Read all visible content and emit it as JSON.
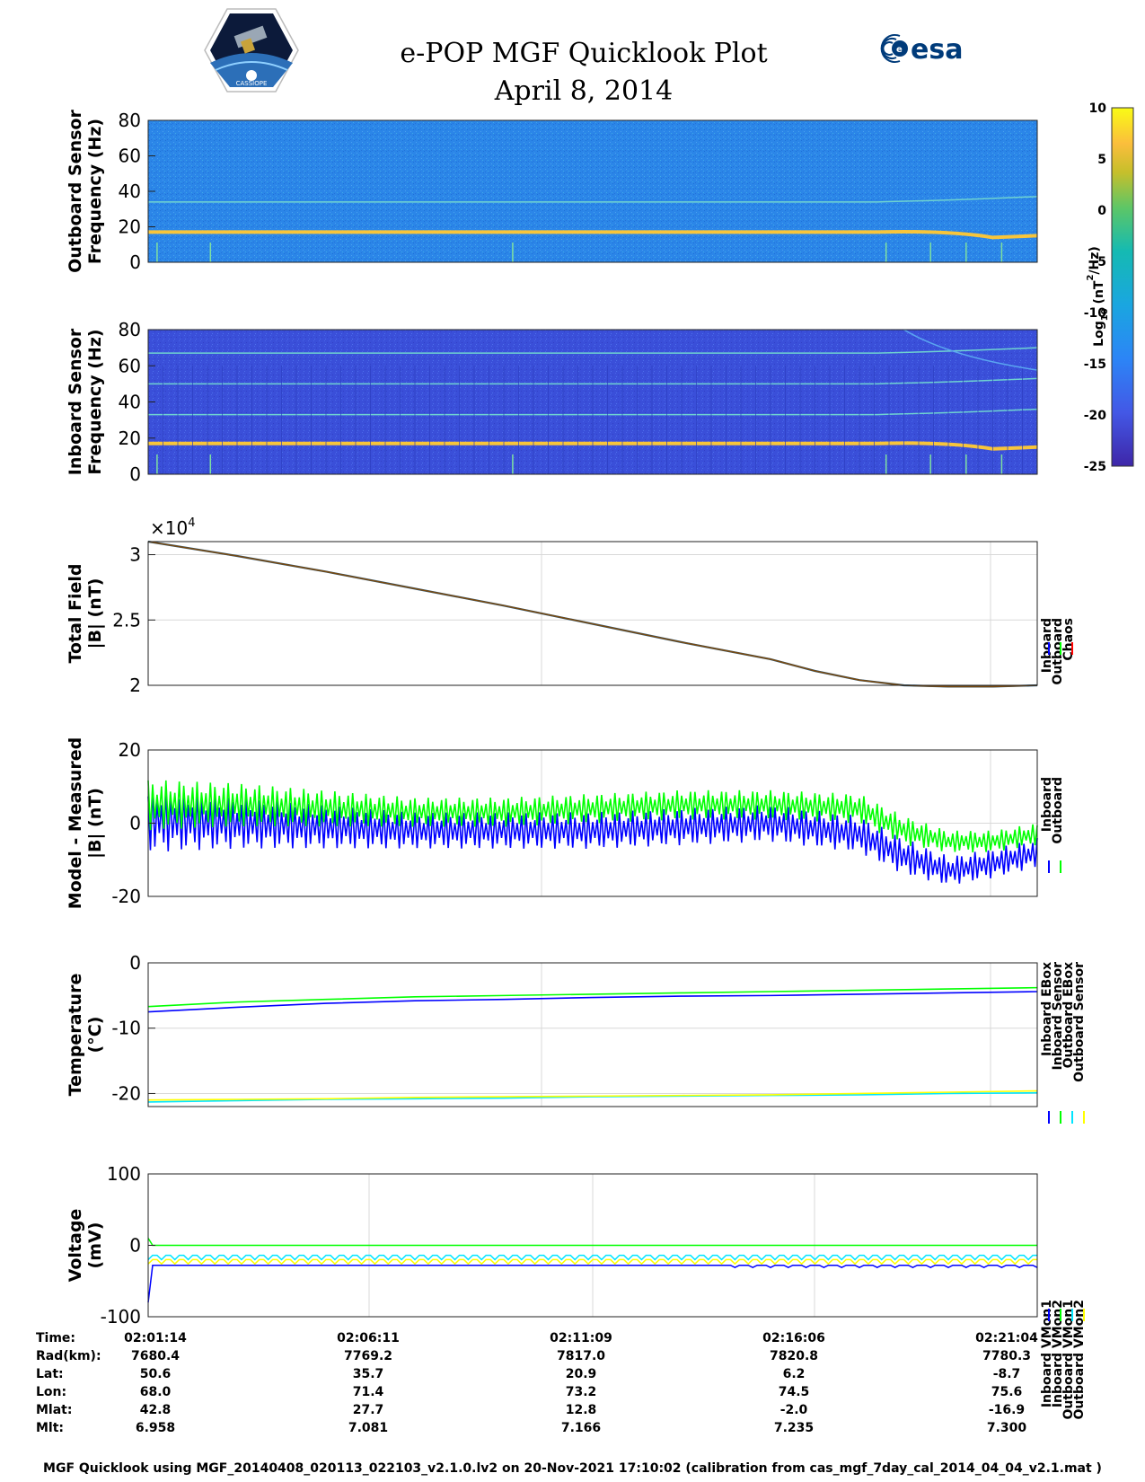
{
  "header": {
    "title": "e-POP MGF Quicklook Plot",
    "date": "April 8, 2014",
    "esa_logo_text": "esa",
    "mission_logo_text": "CASSIOPE"
  },
  "colors": {
    "inboard": "#0000ff",
    "outboard": "#00ff00",
    "chaos": "#ff0000",
    "outboard_ebox": "#00e5ff",
    "outboard_sensor": "#ffff00",
    "spectrogram_bg": "#2a7fe3",
    "spectrogram_inboard_bg": "#3944d6",
    "line_yellow": "#f7c53b"
  },
  "chart_data": [
    {
      "type": "heatmap",
      "ylabel_line1": "Outboard Sensor",
      "ylabel_line2": "Frequency (Hz)",
      "y_ticks": [
        "80",
        "60",
        "40",
        "20",
        "0"
      ],
      "ylim": [
        0,
        80
      ],
      "bright_lines_hz": [
        17,
        34
      ]
    },
    {
      "type": "heatmap",
      "ylabel_line1": "Inboard Sensor",
      "ylabel_line2": "Frequency (Hz)",
      "y_ticks": [
        "80",
        "60",
        "40",
        "20",
        "0"
      ],
      "ylim": [
        0,
        80
      ],
      "bright_lines_hz": [
        17,
        33,
        50,
        67
      ]
    },
    {
      "type": "colorbar",
      "label": "Log10 (nT^2/Hz)",
      "label_base": "Log",
      "label_sub": "10",
      "label_mid": " (nT",
      "label_sup": "2",
      "label_end": "/Hz)",
      "ticks": [
        "10",
        "5",
        "0",
        "-5",
        "-10",
        "-15",
        "-20",
        "-25"
      ],
      "range": [
        -25,
        10
      ]
    },
    {
      "type": "line",
      "ylabel_line1": "Total Field",
      "ylabel_line2": "|B| (nT)",
      "exponent_label": "×10",
      "exponent_power": "4",
      "y_ticks": [
        "3",
        "2.5",
        "2"
      ],
      "ylim": [
        2.0,
        3.1
      ],
      "legend": [
        "Inboard",
        "Outboard",
        "Chaos"
      ],
      "x_fraction": [
        0,
        0.1,
        0.2,
        0.3,
        0.4,
        0.5,
        0.6,
        0.7,
        0.75,
        0.8,
        0.85,
        0.9,
        0.95,
        1.0
      ],
      "values_e4": [
        3.1,
        2.99,
        2.87,
        2.74,
        2.61,
        2.47,
        2.33,
        2.2,
        2.11,
        2.04,
        2.0,
        1.99,
        1.99,
        2.0
      ]
    },
    {
      "type": "line",
      "ylabel_line1": "Model - Measured",
      "ylabel_line2": "|B| (nT)",
      "y_ticks": [
        "20",
        "0",
        "-20"
      ],
      "ylim": [
        -20,
        20
      ],
      "legend": [
        "Inboard",
        "Outboard"
      ],
      "x_fraction": [
        0,
        0.1,
        0.2,
        0.3,
        0.4,
        0.5,
        0.6,
        0.7,
        0.8,
        0.85,
        0.9,
        0.95,
        1.0
      ],
      "series": [
        {
          "name": "Inboard",
          "center": [
            1,
            0,
            -1,
            -2,
            -2,
            -2,
            -1,
            0,
            -3,
            -9,
            -13,
            -11,
            -8
          ],
          "amp": [
            9,
            7,
            6,
            5,
            5,
            5,
            5,
            5,
            5,
            5,
            4,
            4,
            4
          ]
        },
        {
          "name": "Outboard",
          "center": [
            5,
            5,
            4,
            3,
            3,
            4,
            5,
            5,
            4,
            -2,
            -5,
            -5,
            -3
          ],
          "amp": [
            7,
            6,
            5,
            4,
            4,
            4,
            4,
            4,
            4,
            4,
            3,
            3,
            3
          ]
        }
      ]
    },
    {
      "type": "line",
      "ylabel_line1": "Temperature",
      "ylabel_line2": "(°C)",
      "y_ticks": [
        "0",
        "-10",
        "-20"
      ],
      "ylim": [
        -22,
        0
      ],
      "legend": [
        "Inboard EBox",
        "Inboard Sensor",
        "Outboard EBox",
        "Outboard Sensor"
      ],
      "x_fraction": [
        0,
        0.1,
        0.2,
        0.3,
        0.4,
        0.5,
        0.6,
        0.7,
        0.8,
        0.9,
        1.0
      ],
      "series": [
        {
          "name": "Inboard EBox",
          "values": [
            -7.5,
            -6.8,
            -6.2,
            -5.8,
            -5.6,
            -5.3,
            -5.1,
            -5.0,
            -4.8,
            -4.6,
            -4.4
          ]
        },
        {
          "name": "Inboard Sensor",
          "values": [
            -6.7,
            -6.0,
            -5.6,
            -5.2,
            -5.0,
            -4.8,
            -4.6,
            -4.4,
            -4.2,
            -4.0,
            -3.8
          ]
        },
        {
          "name": "Outboard EBox",
          "values": [
            -21.3,
            -21.1,
            -20.9,
            -20.8,
            -20.7,
            -20.5,
            -20.4,
            -20.3,
            -20.2,
            -20.0,
            -19.9
          ]
        },
        {
          "name": "Outboard Sensor",
          "values": [
            -21.0,
            -20.9,
            -20.8,
            -20.6,
            -20.5,
            -20.4,
            -20.3,
            -20.2,
            -20.0,
            -19.8,
            -19.6
          ]
        }
      ]
    },
    {
      "type": "line",
      "ylabel_line1": "Voltage",
      "ylabel_line2": "(mV)",
      "y_ticks": [
        "100",
        "0",
        "-100"
      ],
      "ylim": [
        -100,
        100
      ],
      "legend": [
        "Inboard VMon1",
        "Inboard VMon2",
        "Outboard VMon1",
        "Outboard VMon2"
      ],
      "series": [
        {
          "name": "Inboard VMon1",
          "level": -28
        },
        {
          "name": "Inboard VMon2",
          "level": 0
        },
        {
          "name": "Outboard VMon1",
          "level": -14
        },
        {
          "name": "Outboard VMon2",
          "level": -20
        }
      ]
    }
  ],
  "ephemeris": {
    "labels": [
      "Time:",
      "Rad(km):",
      "Lat:",
      "Lon:",
      "Mlat:",
      "Mlt:"
    ],
    "columns": [
      [
        "02:01:14",
        "7680.4",
        "50.6",
        "68.0",
        "42.8",
        "6.958"
      ],
      [
        "02:06:11",
        "7769.2",
        "35.7",
        "71.4",
        "27.7",
        "7.081"
      ],
      [
        "02:11:09",
        "7817.0",
        "20.9",
        "73.2",
        "12.8",
        "7.166"
      ],
      [
        "02:16:06",
        "7820.8",
        "6.2",
        "74.5",
        "-2.0",
        "7.235"
      ],
      [
        "02:21:04",
        "7780.3",
        "-8.7",
        "75.6",
        "-16.9",
        "7.300"
      ]
    ]
  },
  "footer": {
    "note": "MGF Quicklook using MGF_20140408_020113_022103_v2.1.0.lv2 on 20-Nov-2021 17:10:02 (calibration from cas_mgf_7day_cal_2014_04_04_v2.1.mat )"
  }
}
